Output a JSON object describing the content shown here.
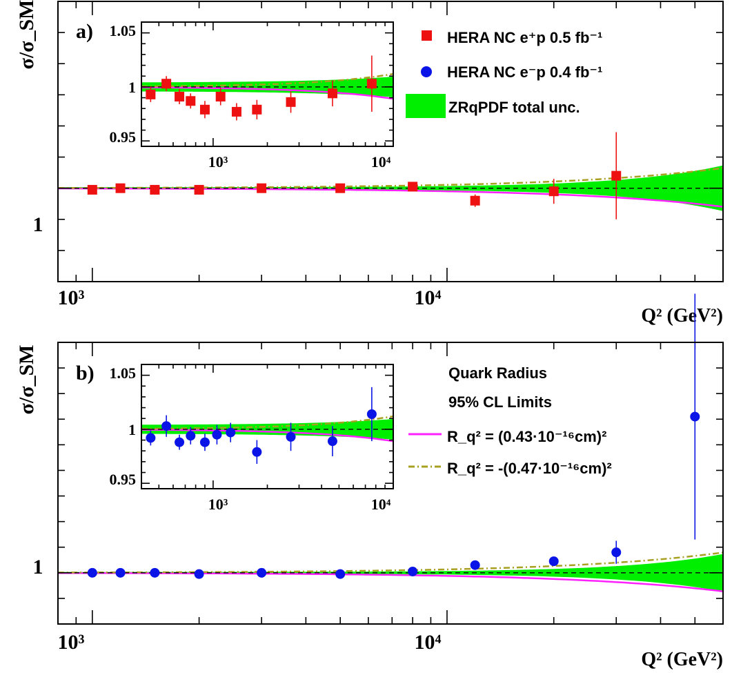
{
  "colors": {
    "ep_data": "#ee1111",
    "em_data": "#0a14e6",
    "unc_band": "#00ee00",
    "rq_pos": "#ff22ff",
    "rq_neg": "#a8a020",
    "sm_line": "#000000"
  },
  "chart_data": [
    {
      "type": "scatter",
      "panel_label": "a)",
      "ylabel": "σ/σ_SM",
      "xlabel": "Q² (GeV²)",
      "xscale": "log",
      "xlim": [
        800,
        60000
      ],
      "ylim": [
        0.4,
        2.2
      ],
      "x_tick_labels": [
        "10³",
        "10⁴"
      ],
      "y_tick_labels": [
        "1"
      ],
      "series": [
        {
          "name": "HERA NC  e⁺p  0.5 fb⁻¹",
          "marker": "square",
          "x": [
            1000,
            1200,
            1500,
            2000,
            3000,
            5000,
            8000,
            12000,
            20000,
            30000
          ],
          "y": [
            0.99,
            1.0,
            0.99,
            0.99,
            1.0,
            1.0,
            1.01,
            0.92,
            0.98,
            1.08
          ],
          "err": [
            0.012,
            0.012,
            0.012,
            0.012,
            0.012,
            0.012,
            0.015,
            0.04,
            0.08,
            0.28
          ]
        }
      ],
      "legend": [
        {
          "label": "HERA NC  e⁺p  0.5 fb⁻¹",
          "marker": "square"
        },
        {
          "label": "HERA NC  e⁻p  0.4 fb⁻¹",
          "marker": "circle"
        },
        {
          "label": "ZRqPDF total unc.",
          "marker": "band"
        }
      ],
      "inset": {
        "xscale": "log",
        "xlim": [
          400,
          10000
        ],
        "ylim": [
          0.945,
          1.06
        ],
        "x_tick_labels": [
          "10³",
          "10⁴"
        ],
        "y_tick_labels": [
          "1.05",
          "1",
          "0.95"
        ],
        "x": [
          450,
          550,
          650,
          750,
          900,
          1100,
          1350,
          1750,
          2700,
          4600,
          7600
        ],
        "y": [
          0.993,
          1.003,
          0.991,
          0.987,
          0.979,
          0.991,
          0.977,
          0.979,
          0.986,
          0.994,
          1.003
        ],
        "err": [
          0.007,
          0.007,
          0.007,
          0.007,
          0.008,
          0.008,
          0.008,
          0.009,
          0.01,
          0.012,
          0.026
        ]
      }
    },
    {
      "type": "scatter",
      "panel_label": "b)",
      "ylabel": "σ/σ_SM",
      "xlabel": "Q² (GeV²)",
      "xscale": "log",
      "xlim": [
        800,
        60000
      ],
      "ylim": [
        0.6,
        2.8
      ],
      "x_tick_labels": [
        "10³",
        "10⁴"
      ],
      "y_tick_labels": [
        "1"
      ],
      "series": [
        {
          "name": "HERA NC  e⁻p  0.4 fb⁻¹",
          "marker": "circle",
          "x": [
            1000,
            1200,
            1500,
            2000,
            3000,
            5000,
            8000,
            12000,
            20000,
            30000,
            50000
          ],
          "y": [
            1.0,
            1.0,
            1.0,
            0.99,
            1.0,
            0.99,
            1.01,
            1.06,
            1.09,
            1.16,
            2.22
          ],
          "err": [
            0.01,
            0.01,
            0.01,
            0.01,
            0.01,
            0.01,
            0.015,
            0.02,
            0.035,
            0.09,
            0.96
          ]
        }
      ],
      "legend": [
        {
          "label": "Quark Radius"
        },
        {
          "label": "95% CL Limits"
        },
        {
          "label": "R_q² =  (0.43·10⁻¹⁶cm)²",
          "line": "solid"
        },
        {
          "label": "R_q² = -(0.47·10⁻¹⁶cm)²",
          "line": "dash-dot"
        }
      ],
      "inset": {
        "xscale": "log",
        "xlim": [
          400,
          10000
        ],
        "ylim": [
          0.945,
          1.06
        ],
        "x_tick_labels": [
          "10³",
          "10⁴"
        ],
        "y_tick_labels": [
          "1.05",
          "1",
          "0.95"
        ],
        "x": [
          450,
          550,
          650,
          750,
          900,
          1050,
          1250,
          1750,
          2700,
          4600,
          7600
        ],
        "y": [
          0.992,
          1.003,
          0.988,
          0.994,
          0.988,
          0.995,
          0.997,
          0.979,
          0.993,
          0.989,
          1.014
        ],
        "err": [
          0.007,
          0.01,
          0.007,
          0.008,
          0.008,
          0.009,
          0.009,
          0.011,
          0.013,
          0.014,
          0.025
        ]
      }
    }
  ]
}
